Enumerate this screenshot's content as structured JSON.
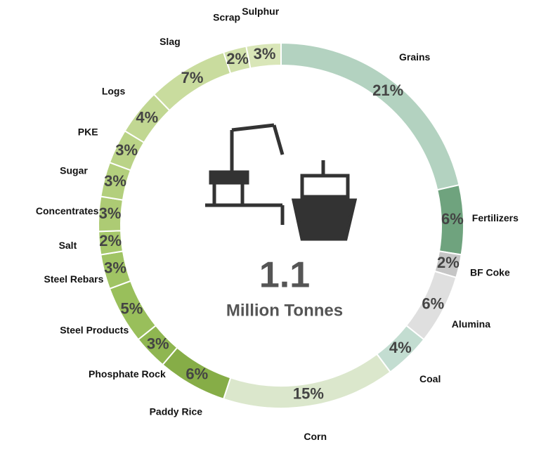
{
  "chart_data": {
    "type": "donut",
    "center_label": "1.1",
    "center_sublabel": "Million Tonnes",
    "categories": [
      "Grains",
      "Fertilizers",
      "BF Coke",
      "Alumina",
      "Coal",
      "Corn",
      "Paddy Rice",
      "Phosphate Rock",
      "Steel Products",
      "Steel Rebars",
      "Salt",
      "Concentrates",
      "Sugar",
      "PKE",
      "Logs",
      "Slag",
      "Scrap",
      "Sulphur"
    ],
    "values": [
      21,
      6,
      2,
      6,
      4,
      15,
      6,
      3,
      5,
      3,
      2,
      3,
      3,
      3,
      4,
      7,
      2,
      3
    ],
    "value_labels": [
      "21%",
      "6%",
      "2%",
      "6%",
      "4%",
      "15%",
      "6%",
      "3%",
      "5%",
      "3%",
      "2%",
      "3%",
      "3%",
      "3%",
      "4%",
      "7%",
      "2%",
      "3%"
    ],
    "colors": [
      "#b3d2c0",
      "#6fa37e",
      "#c6c6c6",
      "#dfdfdf",
      "#c3ddd1",
      "#dbe7cc",
      "#86ad47",
      "#8fb651",
      "#99bf5b",
      "#a0c464",
      "#a6c86b",
      "#adcb74",
      "#b3cf7d",
      "#bad387",
      "#c1d792",
      "#c9dc9e",
      "#d1e1ab",
      "#d9e6b8"
    ]
  }
}
